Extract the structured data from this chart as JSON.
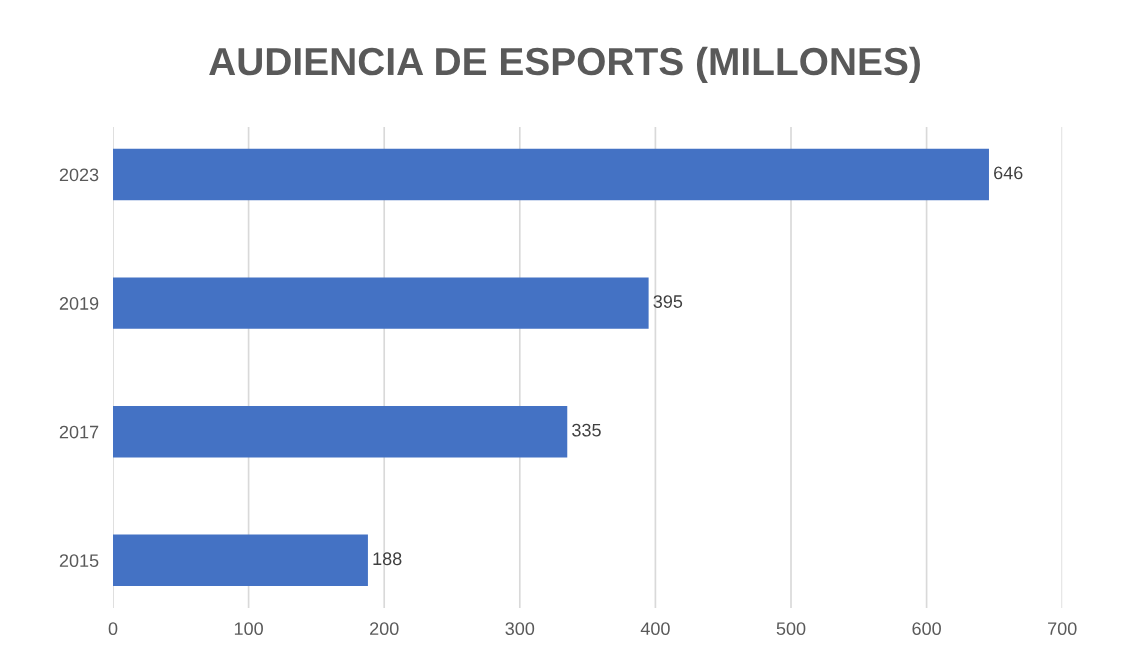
{
  "chart_data": {
    "type": "bar",
    "orientation": "horizontal",
    "title": "AUDIENCIA DE ESPORTS (MILLONES)",
    "categories": [
      "2023",
      "2019",
      "2017",
      "2015"
    ],
    "values": [
      646,
      395,
      335,
      188
    ],
    "color": "#4472c4",
    "xlim": [
      0,
      700
    ],
    "xticks": [
      0,
      100,
      200,
      300,
      400,
      500,
      600,
      700
    ],
    "grid": "x",
    "data_labels": true
  }
}
